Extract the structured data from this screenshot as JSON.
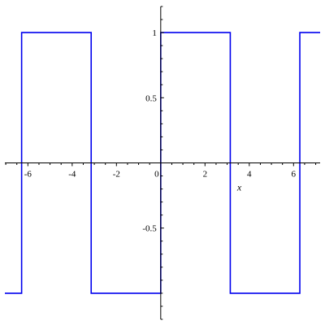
{
  "chart_data": {
    "type": "line",
    "title": "",
    "xlabel": "x",
    "ylabel": "",
    "xlim": [
      -7.04,
      7.2
    ],
    "ylim": [
      -1.2,
      1.2
    ],
    "x_ticks": [
      {
        "value": -6,
        "label": "-6"
      },
      {
        "value": -4,
        "label": "-4"
      },
      {
        "value": -2,
        "label": "-2"
      },
      {
        "value": 0,
        "label": "0"
      },
      {
        "value": 2,
        "label": "2"
      },
      {
        "value": 4,
        "label": "4"
      },
      {
        "value": 6,
        "label": "6"
      }
    ],
    "y_ticks": [
      {
        "value": 1,
        "label": "1"
      },
      {
        "value": 0.5,
        "label": "0.5"
      },
      {
        "value": -0.5,
        "label": "-0.5"
      }
    ],
    "grid": false,
    "legend": "none",
    "color": "#0000ee",
    "series": [
      {
        "x": [
          -7.04,
          -6.28318,
          -6.28318,
          -3.14159,
          -3.14159,
          0,
          0,
          3.14159,
          3.14159,
          6.28318,
          6.28318,
          7.2
        ],
        "y": [
          -1,
          -1,
          1,
          1,
          -1,
          -1,
          1,
          1,
          -1,
          -1,
          1,
          1
        ]
      }
    ]
  }
}
